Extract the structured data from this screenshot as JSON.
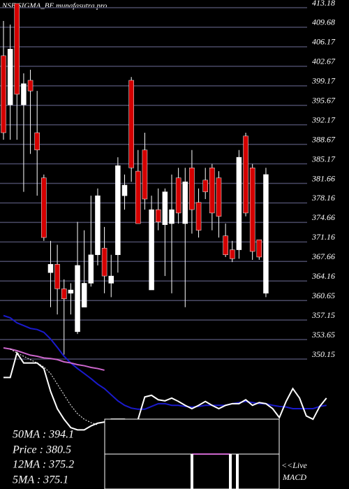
{
  "chart_data": {
    "type": "candlestick",
    "title": "NSE SIGMA_BE munafasutra.pro",
    "categories": [
      null,
      null,
      null,
      null,
      null,
      null,
      null,
      null,
      null,
      null,
      null,
      null,
      null,
      null,
      null,
      null,
      null,
      null,
      null,
      null,
      null,
      null,
      null,
      null,
      null,
      null,
      null,
      null,
      null,
      null,
      null,
      null,
      null,
      null,
      null,
      null,
      null,
      null,
      null,
      null,
      null,
      null,
      null,
      null,
      null,
      null,
      null,
      null,
      null
    ],
    "open": [
      403.8,
      395.0,
      413.18,
      395.0,
      399.4,
      390.0,
      381.9,
      364.9,
      366.4,
      362.0,
      361.2,
      354.3,
      358.7,
      363.0,
      368.1,
      369.3,
      363.0,
      368.1,
      378.7,
      399.4,
      383.1,
      386.9,
      361.8,
      376.2,
      373.5,
      373.7,
      381.9,
      373.7,
      383.7,
      377.5,
      381.5,
      383.7,
      381.9,
      371.5,
      369.0,
      369.0,
      389.4,
      383.7,
      370.8,
      361.2,
      null,
      null,
      null,
      null,
      null,
      null,
      null,
      null,
      null
    ],
    "high": [
      410.05,
      409.4,
      413.18,
      400.65,
      401.3,
      397.5,
      382.5,
      370.6,
      369.9,
      363.7,
      363.0,
      374.0,
      372.5,
      378.7,
      380.0,
      373.1,
      368.1,
      385.6,
      382.5,
      400.0,
      386.9,
      390.0,
      378.7,
      380.0,
      380.0,
      382.5,
      383.7,
      383.7,
      386.9,
      380.0,
      383.7,
      384.4,
      383.1,
      373.7,
      370.6,
      386.9,
      390.0,
      384.4,
      370.8,
      383.7,
      null,
      null,
      null,
      null,
      null,
      null,
      null,
      null,
      null
    ],
    "low": [
      388.75,
      388.75,
      388.75,
      379.4,
      386.2,
      378.7,
      370.6,
      358.7,
      357.4,
      350.2,
      357.4,
      353.9,
      358.7,
      362.4,
      366.2,
      361.2,
      360.5,
      364.9,
      376.2,
      381.2,
      373.7,
      376.2,
      361.8,
      372.5,
      364.3,
      361.2,
      373.7,
      358.7,
      371.9,
      371.2,
      378.1,
      372.5,
      371.2,
      367.7,
      366.8,
      367.4,
      375.0,
      367.2,
      367.2,
      360.5,
      null,
      null,
      null,
      null,
      null,
      null,
      null,
      null,
      null
    ],
    "close": [
      390.0,
      405.0,
      396.9,
      398.8,
      397.5,
      386.9,
      371.2,
      366.4,
      362.0,
      360.2,
      361.8,
      366.2,
      363.0,
      368.1,
      378.7,
      364.3,
      364.3,
      384.1,
      380.6,
      383.7,
      373.7,
      378.1,
      376.2,
      374.0,
      379.4,
      376.2,
      375.6,
      381.2,
      376.2,
      372.5,
      379.4,
      375.6,
      375.0,
      368.1,
      367.4,
      385.6,
      375.6,
      368.7,
      367.7,
      382.5,
      null,
      null,
      null,
      null,
      null,
      null,
      null,
      null,
      null
    ],
    "up_color": "#ffffff",
    "down_color": "#d40000",
    "series": [
      {
        "color": "#1a1acc",
        "values": [
          357.2,
          356.8,
          355.9,
          355.4,
          354.9,
          354.7,
          354.2,
          353.0,
          351.5,
          349.9,
          348.7,
          347.7,
          346.8,
          345.9,
          344.9,
          344.1,
          343.0,
          341.9,
          341.1,
          340.6,
          340.4,
          340.4,
          340.9,
          341.4,
          341.4,
          341.1,
          341.1,
          340.9,
          340.8,
          340.9,
          341.1,
          341.1,
          341.1,
          341.1,
          341.4,
          341.6,
          341.8,
          341.6,
          341.4,
          341.4,
          341.1,
          340.9,
          340.8,
          340.5,
          340.5,
          340.5,
          340.5,
          340.9,
          341.1
        ]
      },
      {
        "color": "#cc66cc",
        "values": [
          351.4,
          351.2,
          350.9,
          350.5,
          350.1,
          349.9,
          349.6,
          349.5,
          349.3,
          348.9,
          348.7,
          348.4,
          348.2,
          347.9,
          347.7,
          347.4,
          null,
          null,
          null,
          null,
          null,
          null,
          null,
          null,
          null,
          null,
          null,
          null,
          null,
          null,
          null,
          null,
          null,
          null,
          null,
          null,
          null,
          null,
          null,
          null,
          null,
          null,
          null,
          null,
          null,
          null,
          null,
          null,
          null
        ]
      },
      {
        "color": "#ffffff",
        "dashed": true,
        "values": [
          null,
          351.2,
          350.5,
          349.9,
          349.3,
          348.7,
          348.0,
          346.8,
          344.9,
          343.0,
          341.1,
          339.6,
          338.6,
          338.0,
          337.6,
          null,
          null,
          null,
          null,
          null,
          null,
          null,
          null,
          null,
          null,
          null,
          null,
          null,
          null,
          null,
          null,
          null,
          null,
          null,
          null,
          null,
          null,
          null,
          null,
          null,
          null,
          null,
          null,
          null,
          null,
          null,
          null,
          null,
          null
        ]
      },
      {
        "color": "#ffffff",
        "values": [
          346.1,
          346.1,
          350.5,
          348.7,
          348.7,
          348.7,
          347.7,
          343.6,
          340.5,
          338.6,
          337.1,
          336.7,
          336.7,
          337.4,
          337.9,
          338.1,
          338.6,
          338.6,
          338.6,
          338.2,
          338.6,
          342.6,
          342.9,
          342.1,
          341.9,
          342.4,
          341.8,
          341.1,
          340.5,
          341.1,
          341.8,
          341.1,
          340.5,
          341.1,
          341.4,
          341.4,
          342.1,
          341.1,
          341.6,
          341.4,
          340.5,
          338.9,
          341.8,
          344.1,
          342.4,
          339.2,
          338.6,
          340.9,
          342.4
        ]
      }
    ],
    "ylim": [
      326.09,
      413.81
    ],
    "yticks": [
      413.18,
      409.68,
      406.17,
      402.67,
      399.17,
      395.67,
      392.17,
      388.67,
      385.17,
      381.66,
      378.16,
      374.66,
      371.16,
      367.66,
      364.16,
      360.65,
      357.15,
      353.65,
      350.15
    ],
    "grid": true,
    "grid_color": "#4a4a66",
    "annotations": [
      "50MA : 394.1",
      "Price  : 380.5",
      "12MA : 375.2",
      "5MA : 375.1"
    ],
    "live_label": "<<Live",
    "macd_label": "MACD"
  }
}
